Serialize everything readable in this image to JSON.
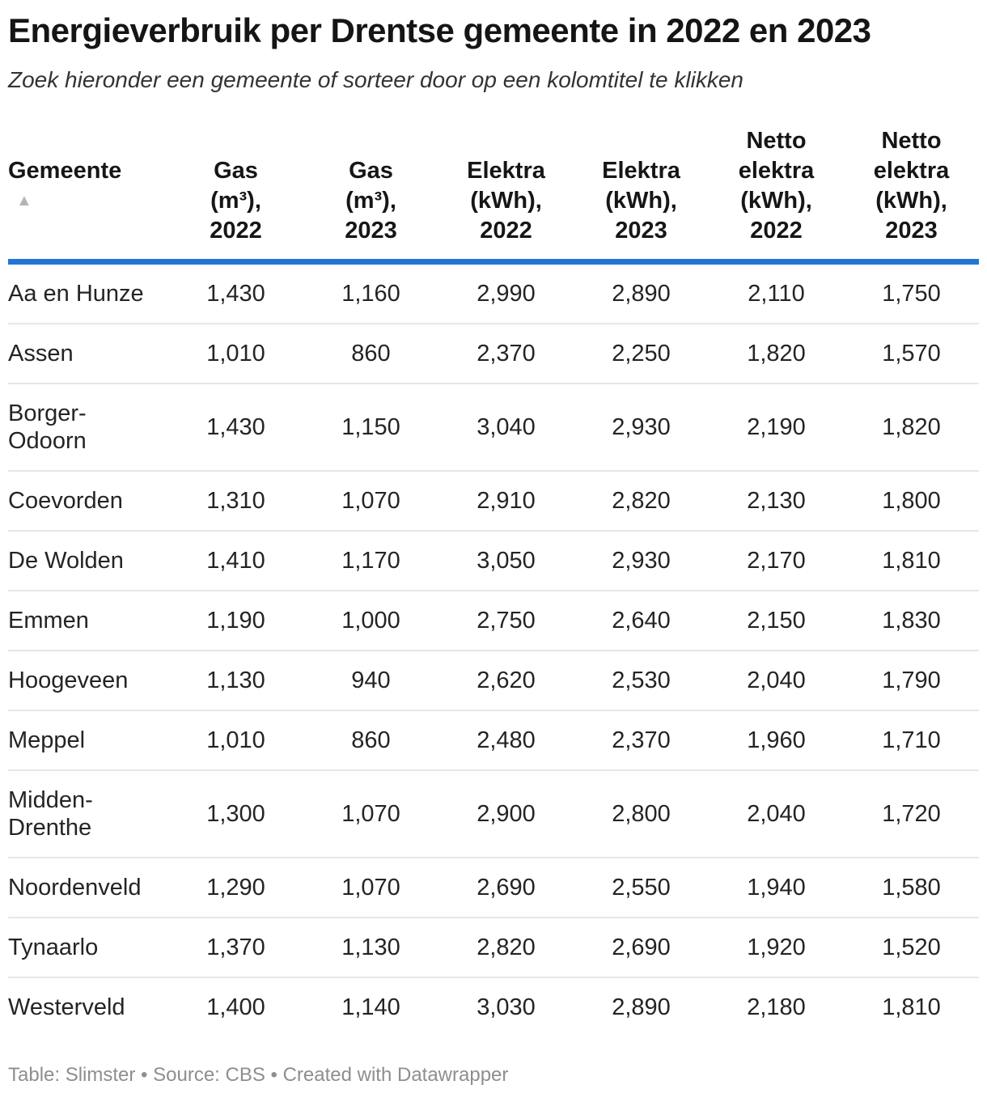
{
  "header": {
    "title": "Energieverbruik per Drentse gemeente in 2022 en 2023",
    "subtitle": "Zoek hieronder een gemeente of sorteer door op een kolomtitel te klikken"
  },
  "table": {
    "sort_icon": "▲",
    "sorted_column": "Gemeente",
    "sort_direction": "ascending",
    "columns": [
      {
        "label": "Gemeente"
      },
      {
        "label": "Gas\n(m³),\n2022"
      },
      {
        "label": "Gas\n(m³),\n2023"
      },
      {
        "label": "Elektra\n(kWh),\n2022"
      },
      {
        "label": "Elektra\n(kWh),\n2023"
      },
      {
        "label": "Netto\nelektra\n(kWh),\n2022"
      },
      {
        "label": "Netto\nelektra\n(kWh),\n2023"
      }
    ],
    "rows": [
      {
        "name": "Aa en Hunze",
        "cells": [
          "1,430",
          "1,160",
          "2,990",
          "2,890",
          "2,110",
          "1,750"
        ]
      },
      {
        "name": "Assen",
        "cells": [
          "1,010",
          "860",
          "2,370",
          "2,250",
          "1,820",
          "1,570"
        ]
      },
      {
        "name": "Borger-Odoorn",
        "cells": [
          "1,430",
          "1,150",
          "3,040",
          "2,930",
          "2,190",
          "1,820"
        ]
      },
      {
        "name": "Coevorden",
        "cells": [
          "1,310",
          "1,070",
          "2,910",
          "2,820",
          "2,130",
          "1,800"
        ]
      },
      {
        "name": "De Wolden",
        "cells": [
          "1,410",
          "1,170",
          "3,050",
          "2,930",
          "2,170",
          "1,810"
        ]
      },
      {
        "name": "Emmen",
        "cells": [
          "1,190",
          "1,000",
          "2,750",
          "2,640",
          "2,150",
          "1,830"
        ]
      },
      {
        "name": "Hoogeveen",
        "cells": [
          "1,130",
          "940",
          "2,620",
          "2,530",
          "2,040",
          "1,790"
        ]
      },
      {
        "name": "Meppel",
        "cells": [
          "1,010",
          "860",
          "2,480",
          "2,370",
          "1,960",
          "1,710"
        ]
      },
      {
        "name": "Midden-Drenthe",
        "cells": [
          "1,300",
          "1,070",
          "2,900",
          "2,800",
          "2,040",
          "1,720"
        ]
      },
      {
        "name": "Noordenveld",
        "cells": [
          "1,290",
          "1,070",
          "2,690",
          "2,550",
          "1,940",
          "1,580"
        ]
      },
      {
        "name": "Tynaarlo",
        "cells": [
          "1,370",
          "1,130",
          "2,820",
          "2,690",
          "1,920",
          "1,520"
        ]
      },
      {
        "name": "Westerveld",
        "cells": [
          "1,400",
          "1,140",
          "3,030",
          "2,890",
          "2,180",
          "1,810"
        ]
      }
    ]
  },
  "footer": {
    "credits": "Table: Slimster • Source: CBS • Created with Datawrapper"
  },
  "colors": {
    "accent_rule": "#2077d4",
    "row_separator": "#e7e7e7",
    "title_text": "#151515",
    "body_text": "#242424",
    "footer_text": "#8e8e8e",
    "sort_arrow": "#b5b5b5"
  },
  "chart_data": {
    "type": "table",
    "title": "Energieverbruik per Drentse gemeente in 2022 en 2023",
    "subtitle": "Zoek hieronder een gemeente of sorteer door op een kolomtitel te klikken",
    "columns": [
      "Gemeente",
      "Gas (m³), 2022",
      "Gas (m³), 2023",
      "Elektra (kWh), 2022",
      "Elektra (kWh), 2023",
      "Netto elektra (kWh), 2022",
      "Netto elektra (kWh), 2023"
    ],
    "rows": [
      [
        "Aa en Hunze",
        1430,
        1160,
        2990,
        2890,
        2110,
        1750
      ],
      [
        "Assen",
        1010,
        860,
        2370,
        2250,
        1820,
        1570
      ],
      [
        "Borger-Odoorn",
        1430,
        1150,
        3040,
        2930,
        2190,
        1820
      ],
      [
        "Coevorden",
        1310,
        1070,
        2910,
        2820,
        2130,
        1800
      ],
      [
        "De Wolden",
        1410,
        1170,
        3050,
        2930,
        2170,
        1810
      ],
      [
        "Emmen",
        1190,
        1000,
        2750,
        2640,
        2150,
        1830
      ],
      [
        "Hoogeveen",
        1130,
        940,
        2620,
        2530,
        2040,
        1790
      ],
      [
        "Meppel",
        1010,
        860,
        2480,
        2370,
        1960,
        1710
      ],
      [
        "Midden-Drenthe",
        1300,
        1070,
        2900,
        2800,
        2040,
        1720
      ],
      [
        "Noordenveld",
        1290,
        1070,
        2690,
        2550,
        1940,
        1580
      ],
      [
        "Tynaarlo",
        1370,
        1130,
        2820,
        2690,
        1920,
        1520
      ],
      [
        "Westerveld",
        1400,
        1140,
        3030,
        2890,
        2180,
        1810
      ]
    ],
    "source": "CBS",
    "table_credit": "Slimster",
    "tool": "Datawrapper"
  }
}
